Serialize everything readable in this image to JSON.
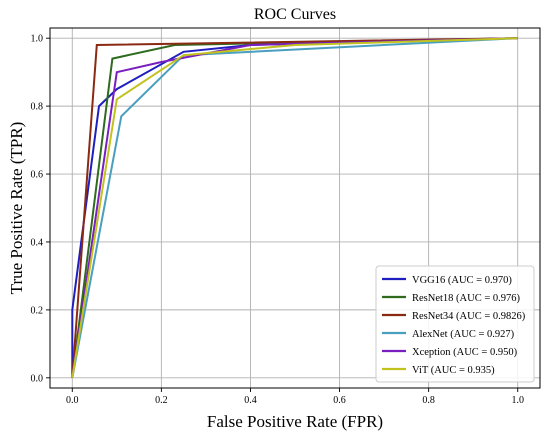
{
  "chart_data": {
    "type": "line",
    "title": "ROC Curves",
    "xlabel": "False Positive Rate (FPR)",
    "ylabel": "True Positive Rate (TPR)",
    "xlim": [
      -0.05,
      1.05
    ],
    "ylim": [
      -0.03,
      1.03
    ],
    "xticks": [
      "0.0",
      "0.2",
      "0.4",
      "0.6",
      "0.8",
      "1.0"
    ],
    "yticks": [
      "0.0",
      "0.2",
      "0.4",
      "0.6",
      "0.8",
      "1.0"
    ],
    "grid": true,
    "legend_position": "lower-right",
    "series": [
      {
        "name": "VGG16 (AUC = 0.970)",
        "color": "#1f1fbf",
        "points": [
          [
            0,
            0
          ],
          [
            0,
            0.2
          ],
          [
            0.06,
            0.8
          ],
          [
            0.1,
            0.85
          ],
          [
            0.25,
            0.96
          ],
          [
            0.4,
            0.98
          ],
          [
            1,
            1
          ]
        ]
      },
      {
        "name": "ResNet18 (AUC = 0.976)",
        "color": "#2e6b1f",
        "points": [
          [
            0,
            0
          ],
          [
            0.09,
            0.94
          ],
          [
            0.23,
            0.98
          ],
          [
            1,
            1
          ]
        ]
      },
      {
        "name": "ResNet34 (AUC = 0.9826)",
        "color": "#8b2a12",
        "points": [
          [
            0,
            0
          ],
          [
            0.055,
            0.98
          ],
          [
            1,
            1
          ]
        ]
      },
      {
        "name": "AlexNet (AUC = 0.927)",
        "color": "#4a9fbf",
        "points": [
          [
            0,
            0
          ],
          [
            0.11,
            0.77
          ],
          [
            0.25,
            0.95
          ],
          [
            1,
            1
          ]
        ]
      },
      {
        "name": "Xception (AUC = 0.950)",
        "color": "#7a1fbf",
        "points": [
          [
            0,
            0
          ],
          [
            0.1,
            0.9
          ],
          [
            0.2,
            0.93
          ],
          [
            0.4,
            0.98
          ],
          [
            1,
            1
          ]
        ]
      },
      {
        "name": "ViT (AUC = 0.935)",
        "color": "#c2c21f",
        "points": [
          [
            0,
            0
          ],
          [
            0.1,
            0.82
          ],
          [
            0.25,
            0.95
          ],
          [
            0.5,
            0.98
          ],
          [
            1,
            1
          ]
        ]
      }
    ]
  }
}
